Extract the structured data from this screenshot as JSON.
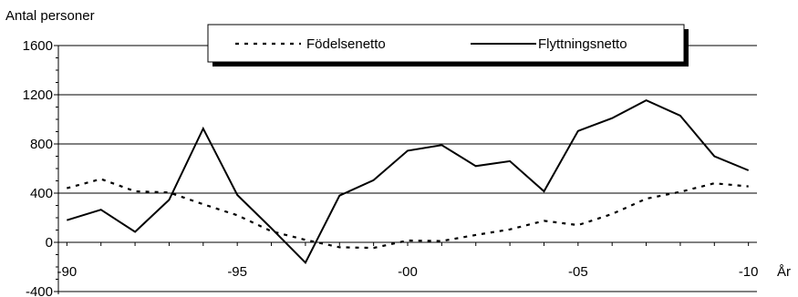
{
  "chart_data": {
    "type": "line",
    "title": "",
    "ylabel": "Antal personer",
    "xlabel": "År",
    "ylim": [
      -400,
      1600
    ],
    "yticks": [
      -400,
      0,
      400,
      800,
      1200,
      1600
    ],
    "ytick_labels": [
      "-400",
      "0",
      "400",
      "800",
      "1200",
      "1600"
    ],
    "x": [
      1990,
      1991,
      1992,
      1993,
      1994,
      1995,
      1996,
      1997,
      1998,
      1999,
      2000,
      2001,
      2002,
      2003,
      2004,
      2005,
      2006,
      2007,
      2008,
      2009,
      2010
    ],
    "xticks": [
      1990,
      1995,
      2000,
      2005,
      2010
    ],
    "xtick_labels": [
      "-90",
      "-95",
      "-00",
      "-05",
      "-10"
    ],
    "grid": "horizontal",
    "legend_position": "top",
    "series": [
      {
        "name": "Födelsenetto",
        "style": "dashed",
        "color": "#000000",
        "values": [
          440,
          515,
          415,
          405,
          310,
          220,
          90,
          20,
          -40,
          -45,
          15,
          10,
          60,
          105,
          175,
          140,
          230,
          355,
          410,
          480,
          455
        ]
      },
      {
        "name": "Flyttningsnetto",
        "style": "solid",
        "color": "#000000",
        "values": [
          180,
          265,
          85,
          345,
          925,
          385,
          115,
          -165,
          380,
          505,
          745,
          790,
          620,
          660,
          415,
          905,
          1010,
          1155,
          1030,
          700,
          585
        ]
      }
    ]
  }
}
